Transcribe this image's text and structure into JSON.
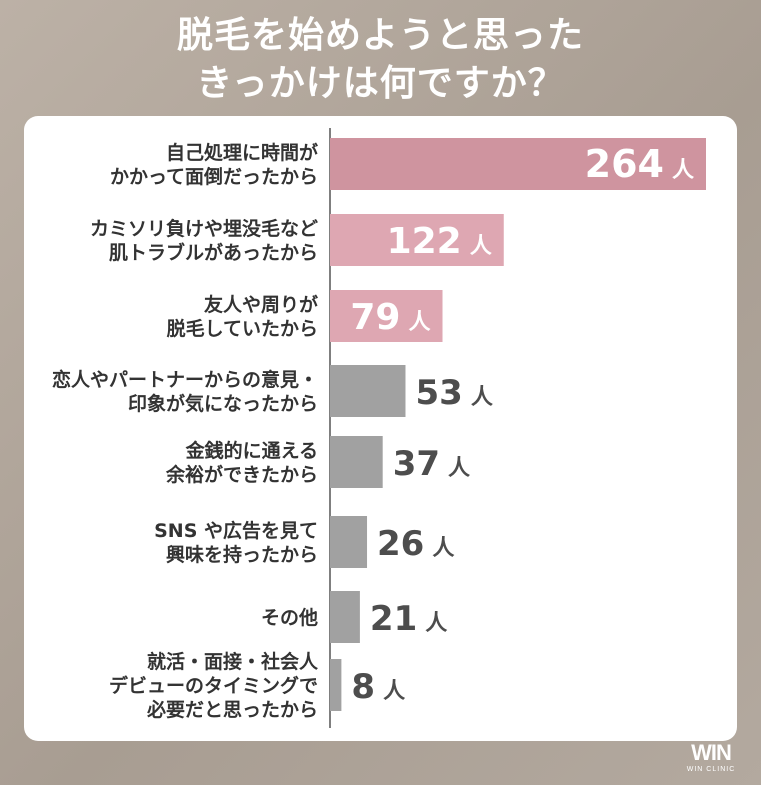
{
  "title_lines": [
    "脱毛を始めようと思った",
    "きっかけは何ですか？"
  ],
  "logo": {
    "mark": "WIN",
    "sub": "WIN CLINIC"
  },
  "unit": "人",
  "colors": {
    "highlight_1": "#cf949f",
    "highlight_2": "#dea7b2",
    "highlight_3": "#dea7b2",
    "default": "#a1a1a1",
    "value_light": "#ffffff",
    "value_dark": "#4d4d4d",
    "label": "#333333"
  },
  "chart_data": {
    "type": "bar",
    "orientation": "horizontal",
    "title": "脱毛を始めようと思ったきっかけは何ですか？",
    "categories": [
      [
        "自己処理に時間が",
        "かかって面倒だったから"
      ],
      [
        "カミソリ負けや埋没毛など",
        "肌トラブルがあったから"
      ],
      [
        "友人や周りが",
        "脱毛していたから"
      ],
      [
        "恋人やパートナーからの意見・",
        "印象が気になったから"
      ],
      [
        "金銭的に通える",
        "余裕ができたから"
      ],
      [
        "SNS や広告を見て",
        "興味を持ったから"
      ],
      [
        "その他"
      ],
      [
        "就活・面接・社会人",
        "デビューのタイミングで",
        "必要だと思ったから"
      ]
    ],
    "values": [
      264,
      122,
      79,
      53,
      37,
      26,
      21,
      8
    ],
    "xlim": [
      0,
      264
    ],
    "grid": false,
    "legend": "none"
  }
}
